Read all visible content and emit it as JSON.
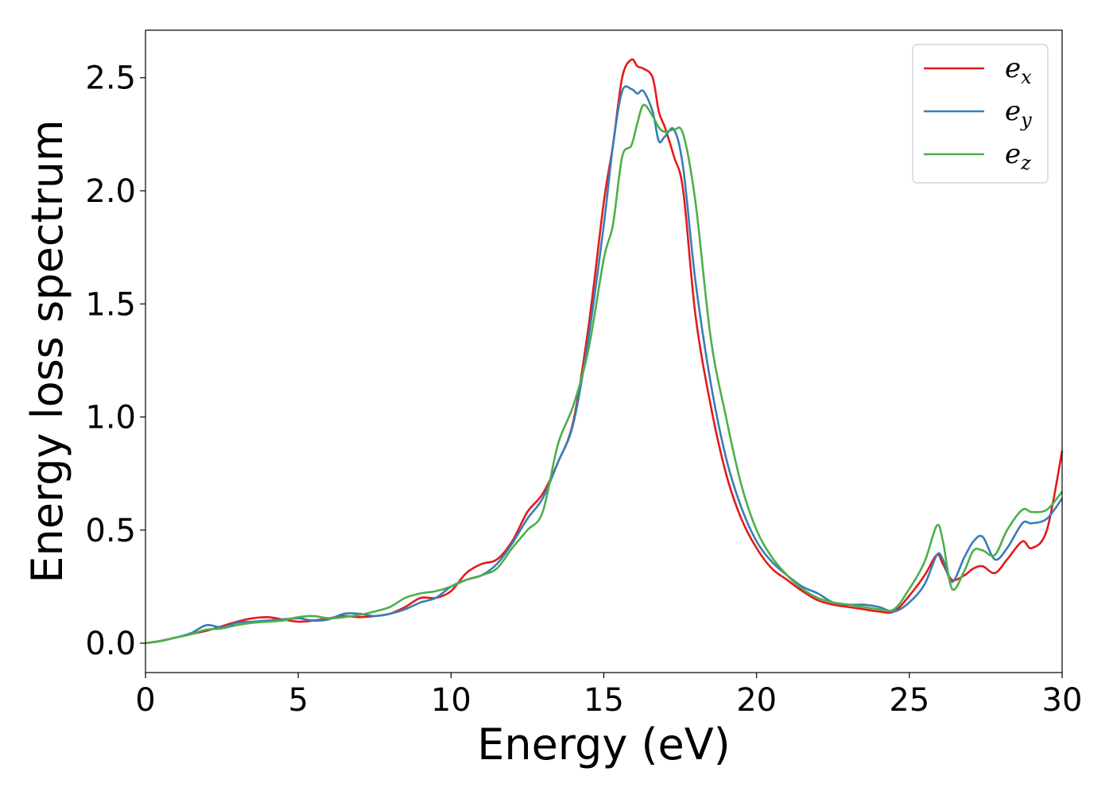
{
  "chart_data": {
    "type": "line",
    "xlabel": "Energy (eV)",
    "ylabel": "Energy loss spectrum",
    "xlim": [
      0,
      30
    ],
    "ylim": [
      -0.13,
      2.71
    ],
    "xticks": [
      0,
      5,
      10,
      15,
      20,
      25,
      30
    ],
    "yticks": [
      0.0,
      0.5,
      1.0,
      1.5,
      2.0,
      2.5
    ],
    "xtick_labels": [
      "0",
      "5",
      "10",
      "15",
      "20",
      "25",
      "30"
    ],
    "ytick_labels": [
      "0.0",
      "0.5",
      "1.0",
      "1.5",
      "2.0",
      "2.5"
    ],
    "grid": false,
    "legend_position": "top-right",
    "series": [
      {
        "name": "e_x",
        "legend_base": "e",
        "legend_sub": "x",
        "color": "#e41a1c",
        "x": [
          0,
          0.5,
          1,
          1.5,
          2,
          2.5,
          3,
          3.5,
          4,
          4.5,
          5,
          5.5,
          6,
          6.5,
          7,
          7.5,
          8,
          8.5,
          9,
          9.5,
          10,
          10.5,
          11,
          11.5,
          12,
          12.5,
          13,
          13.5,
          14,
          14.5,
          15,
          15.3,
          15.6,
          15.9,
          16.1,
          16.3,
          16.6,
          16.8,
          17,
          17.3,
          17.6,
          18,
          18.5,
          19,
          19.5,
          20,
          20.5,
          21,
          21.5,
          22,
          22.5,
          23,
          23.5,
          24,
          24.5,
          25,
          25.5,
          25.9,
          26.1,
          26.4,
          26.8,
          27.1,
          27.4,
          27.8,
          28.2,
          28.7,
          29,
          29.5,
          30
        ],
        "y": [
          0.0,
          0.01,
          0.025,
          0.04,
          0.055,
          0.075,
          0.095,
          0.11,
          0.115,
          0.105,
          0.095,
          0.1,
          0.11,
          0.12,
          0.115,
          0.12,
          0.13,
          0.16,
          0.2,
          0.2,
          0.23,
          0.31,
          0.35,
          0.37,
          0.45,
          0.58,
          0.66,
          0.8,
          0.98,
          1.4,
          1.95,
          2.2,
          2.5,
          2.58,
          2.55,
          2.54,
          2.5,
          2.35,
          2.28,
          2.15,
          2.0,
          1.45,
          1.05,
          0.75,
          0.55,
          0.42,
          0.33,
          0.28,
          0.23,
          0.19,
          0.17,
          0.16,
          0.15,
          0.14,
          0.14,
          0.21,
          0.3,
          0.39,
          0.35,
          0.28,
          0.3,
          0.33,
          0.34,
          0.31,
          0.37,
          0.45,
          0.42,
          0.5,
          0.85
        ]
      },
      {
        "name": "e_y",
        "legend_base": "e",
        "legend_sub": "y",
        "color": "#377eb8",
        "x": [
          0,
          0.5,
          1,
          1.5,
          2,
          2.5,
          3,
          3.5,
          4,
          4.5,
          5,
          5.5,
          6,
          6.5,
          7,
          7.5,
          8,
          8.5,
          9,
          9.5,
          10,
          10.5,
          11,
          11.5,
          12,
          12.5,
          13,
          13.5,
          14,
          14.5,
          15,
          15.3,
          15.6,
          15.9,
          16.1,
          16.3,
          16.6,
          16.8,
          17,
          17.3,
          17.6,
          18,
          18.5,
          19,
          19.5,
          20,
          20.5,
          21,
          21.5,
          22,
          22.5,
          23,
          23.5,
          24,
          24.5,
          25,
          25.5,
          25.9,
          26.1,
          26.4,
          26.8,
          27.1,
          27.4,
          27.8,
          28.2,
          28.7,
          29,
          29.5,
          30
        ],
        "y": [
          0.0,
          0.01,
          0.025,
          0.045,
          0.08,
          0.07,
          0.09,
          0.095,
          0.1,
          0.105,
          0.11,
          0.1,
          0.105,
          0.13,
          0.13,
          0.12,
          0.13,
          0.15,
          0.18,
          0.2,
          0.25,
          0.28,
          0.3,
          0.35,
          0.44,
          0.55,
          0.64,
          0.8,
          0.97,
          1.35,
          1.85,
          2.2,
          2.44,
          2.45,
          2.43,
          2.44,
          2.35,
          2.22,
          2.24,
          2.27,
          2.1,
          1.6,
          1.15,
          0.82,
          0.6,
          0.45,
          0.36,
          0.3,
          0.25,
          0.22,
          0.18,
          0.17,
          0.17,
          0.16,
          0.14,
          0.18,
          0.26,
          0.39,
          0.37,
          0.27,
          0.38,
          0.45,
          0.47,
          0.37,
          0.42,
          0.53,
          0.53,
          0.55,
          0.64
        ]
      },
      {
        "name": "e_z",
        "legend_base": "e",
        "legend_sub": "z",
        "color": "#4daf4a",
        "x": [
          0,
          0.5,
          1,
          1.5,
          2,
          2.5,
          3,
          3.5,
          4,
          4.5,
          5,
          5.5,
          6,
          6.5,
          7,
          7.5,
          8,
          8.5,
          9,
          9.5,
          10,
          10.5,
          11,
          11.5,
          12,
          12.5,
          13,
          13.5,
          14,
          14.5,
          15,
          15.3,
          15.6,
          15.9,
          16.1,
          16.3,
          16.6,
          16.8,
          17,
          17.3,
          17.6,
          18,
          18.5,
          19,
          19.5,
          20,
          20.5,
          21,
          21.5,
          22,
          22.5,
          23,
          23.5,
          24,
          24.5,
          25,
          25.5,
          25.9,
          26.1,
          26.4,
          26.8,
          27.1,
          27.4,
          27.8,
          28.2,
          28.7,
          29,
          29.5,
          30
        ],
        "y": [
          0.0,
          0.01,
          0.025,
          0.04,
          0.06,
          0.065,
          0.08,
          0.09,
          0.095,
          0.1,
          0.115,
          0.12,
          0.11,
          0.115,
          0.125,
          0.14,
          0.16,
          0.2,
          0.22,
          0.23,
          0.25,
          0.28,
          0.3,
          0.33,
          0.42,
          0.5,
          0.58,
          0.88,
          1.05,
          1.3,
          1.7,
          1.85,
          2.15,
          2.2,
          2.3,
          2.38,
          2.33,
          2.28,
          2.26,
          2.27,
          2.25,
          1.95,
          1.35,
          1.0,
          0.7,
          0.5,
          0.38,
          0.3,
          0.24,
          0.2,
          0.18,
          0.17,
          0.16,
          0.15,
          0.15,
          0.24,
          0.36,
          0.52,
          0.45,
          0.24,
          0.32,
          0.41,
          0.41,
          0.39,
          0.5,
          0.59,
          0.58,
          0.59,
          0.67
        ]
      }
    ]
  }
}
